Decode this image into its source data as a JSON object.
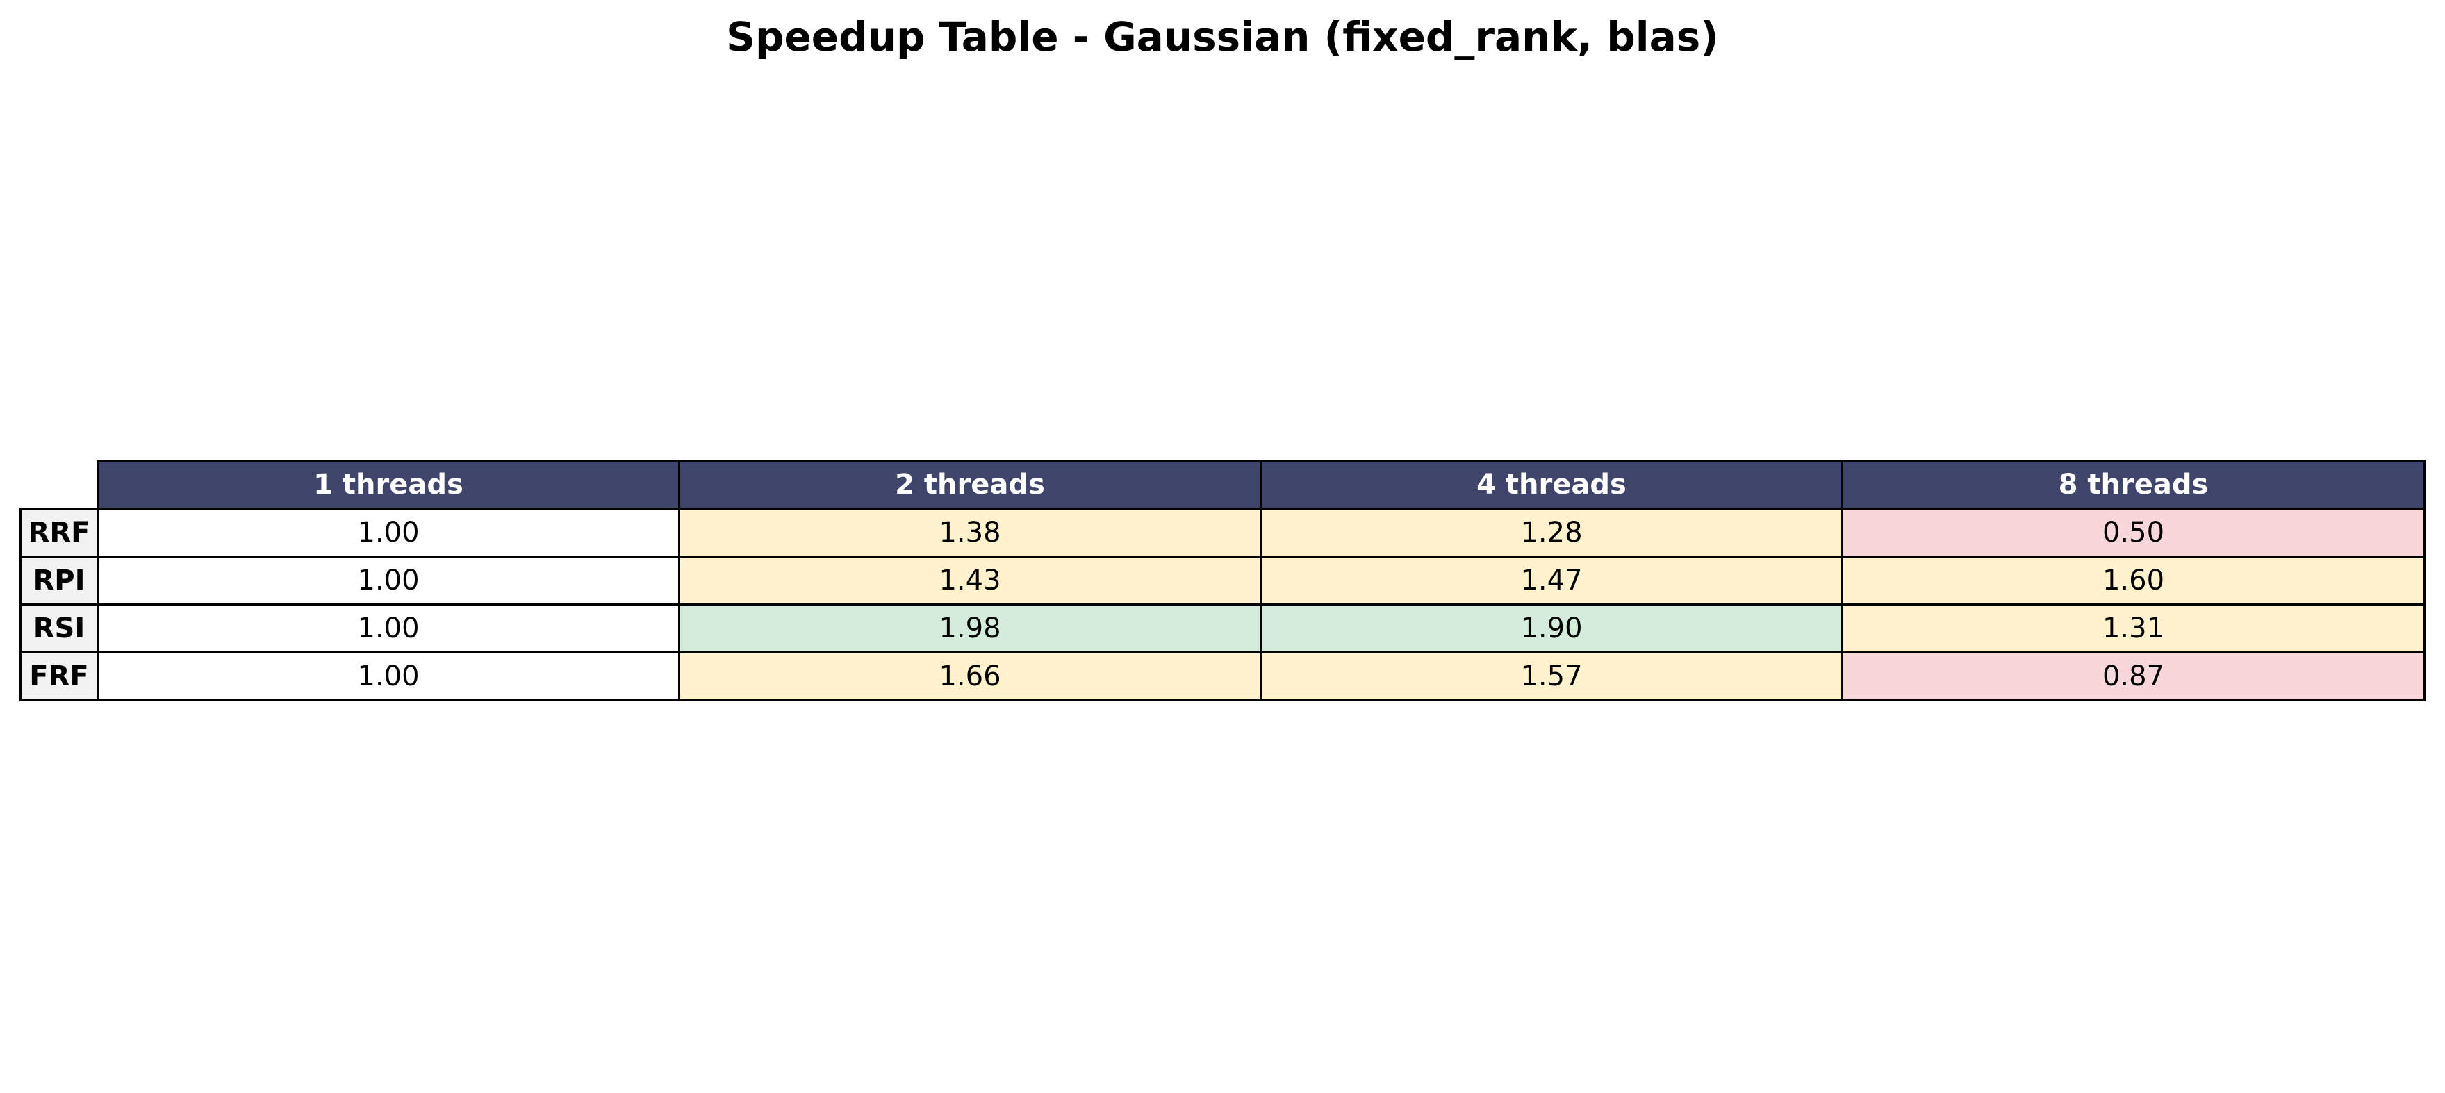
{
  "chart_data": {
    "type": "table",
    "title": "Speedup Table - Gaussian (fixed_rank, blas)",
    "columns": [
      "1 threads",
      "2 threads",
      "4 threads",
      "8 threads"
    ],
    "rows": [
      {
        "label": "RRF",
        "cells": [
          {
            "text": "1.00",
            "value": 1.0,
            "color": "#ffffff"
          },
          {
            "text": "1.38",
            "value": 1.38,
            "color": "#fff2cc"
          },
          {
            "text": "1.28",
            "value": 1.28,
            "color": "#fff2cc"
          },
          {
            "text": "0.50",
            "value": 0.5,
            "color": "#f8d7da"
          }
        ]
      },
      {
        "label": "RPI",
        "cells": [
          {
            "text": "1.00",
            "value": 1.0,
            "color": "#ffffff"
          },
          {
            "text": "1.43",
            "value": 1.43,
            "color": "#fff2cc"
          },
          {
            "text": "1.47",
            "value": 1.47,
            "color": "#fff2cc"
          },
          {
            "text": "1.60",
            "value": 1.6,
            "color": "#fff2cc"
          }
        ]
      },
      {
        "label": "RSI",
        "cells": [
          {
            "text": "1.00",
            "value": 1.0,
            "color": "#ffffff"
          },
          {
            "text": "1.98",
            "value": 1.98,
            "color": "#d4edda"
          },
          {
            "text": "1.90",
            "value": 1.9,
            "color": "#d4edda"
          },
          {
            "text": "1.31",
            "value": 1.31,
            "color": "#fff2cc"
          }
        ]
      },
      {
        "label": "FRF",
        "cells": [
          {
            "text": "1.00",
            "value": 1.0,
            "color": "#ffffff"
          },
          {
            "text": "1.66",
            "value": 1.66,
            "color": "#fff2cc"
          },
          {
            "text": "1.57",
            "value": 1.57,
            "color": "#fff2cc"
          },
          {
            "text": "0.87",
            "value": 0.87,
            "color": "#f8d7da"
          }
        ]
      }
    ],
    "colors": {
      "header_background": "#3f456a",
      "header_text": "#ffffff",
      "row_header_background": "#f2f2f2",
      "high_speedup": "#d4edda",
      "moderate_speedup": "#fff2cc",
      "slowdown": "#f8d7da",
      "baseline": "#ffffff"
    }
  }
}
